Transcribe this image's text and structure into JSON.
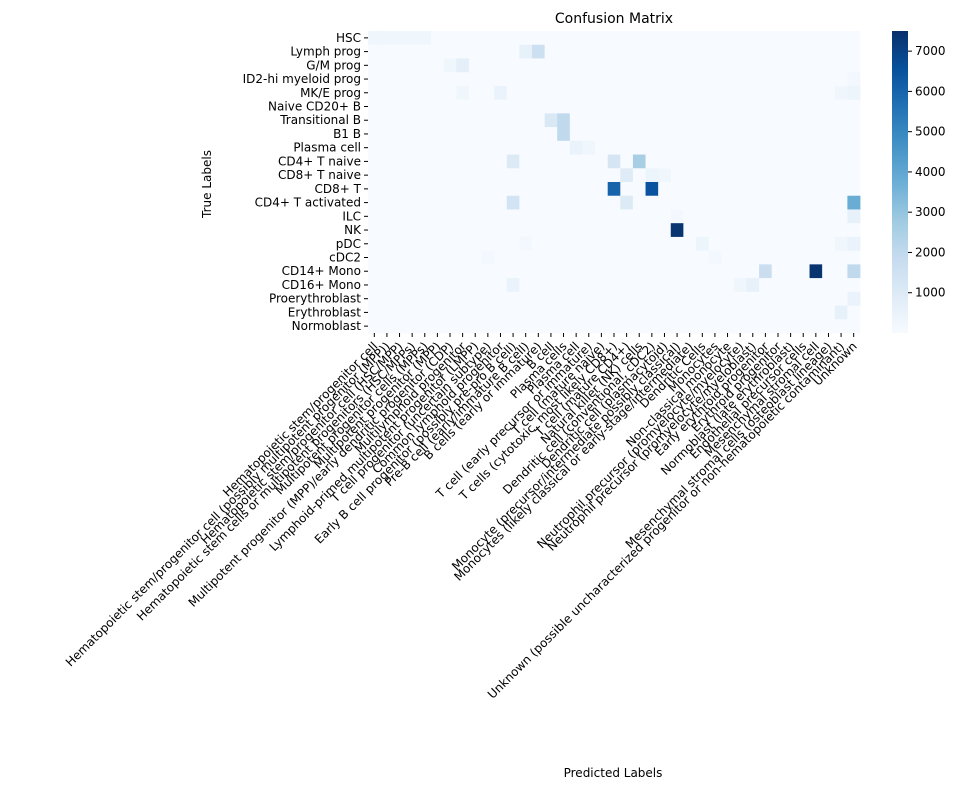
{
  "chart_data": {
    "type": "heatmap",
    "title": "Confusion Matrix",
    "xlabel": "Predicted Labels",
    "ylabel": "True Labels",
    "colormap": "Blues",
    "colorbar": {
      "min": 0,
      "max": 7500,
      "ticks": [
        1000,
        2000,
        3000,
        4000,
        5000,
        6000,
        7000
      ]
    },
    "row_labels": [
      "HSC",
      "Lymph prog",
      "G/M prog",
      "ID2-hi myeloid prog",
      "MK/E prog",
      "Naive CD20+ B",
      "Transitional B",
      "B1 B",
      "Plasma cell",
      "CD4+ T naive",
      "CD8+ T naive",
      "CD8+ T",
      "CD4+ T activated",
      "ILC",
      "NK",
      "pDC",
      "cDC2",
      "CD14+ Mono",
      "CD16+ Mono",
      "Proerythroblast",
      "Erythroblast",
      "Normoblast"
    ],
    "col_labels": [
      "Hematopoietic stem/progenitor cell",
      "Hematopoietic stem/progenitor cell (possibly multipotent progenitor (MPP))",
      "Hematopoietic stem/progenitor cell (HSC/MPP)",
      "Hematopoietic stem cells or multipotent progenitors (HSC/MPPs)",
      "Multipotent progenitor cells (MPPs)",
      "Multipotent progenitor (MPP)",
      "Multipotent progenitor (MPP)/early dendritic progenitor (CDP)",
      "Multilymphoid progenitor",
      "Lymphoid-primed multipotent progenitor (LMPP)",
      "T cell progenitor (uncertain subtype)",
      "Common lymphoid progenitor",
      "Early B cell progenitor (possibly pre-pro B cell)",
      "Pre-B cell (early/immature B cell)",
      "B cells (early or immature)",
      "B cell",
      "Plasma cells",
      "Plasma cell",
      "T cell (early precursor or immature)",
      "T cell (mature naive)",
      "T cells (cytotoxic, most likely CD8+)",
      "T cell (mature CD4+)",
      "Natural killer (NK) cells",
      "Dendritic cell (conventional, cDC2)",
      "Dendritic cell (plasmacytoid)",
      "Monocyte (precursor/intermediate possibly classical)",
      "Monocytes (likely classical or early-stage/intermediate)",
      "Dendritic Cells",
      "Monocytes",
      "Non-classical monocyte",
      "Neutrophil precursor (promyelocyte/myelocyte)",
      "Neutrophil precursor (promyelocyte/myeloblast)",
      "Early erythroid progenitor",
      "Erythroid progenitor",
      "Normoblast (late erythroblast)",
      "Endothelial precursor cells",
      "Mesenchymal stromal cell",
      "Mesenchymal stromal cells (osteoblast lineage)",
      "Unknown (possible uncharacterized progenitor or non-hematopoietic contaminant)",
      "Unknown"
    ],
    "matrix": [
      [
        300,
        300,
        300,
        300,
        300,
        0,
        0,
        0,
        0,
        0,
        0,
        0,
        0,
        0,
        0,
        0,
        0,
        0,
        0,
        0,
        0,
        0,
        0,
        0,
        0,
        0,
        0,
        0,
        0,
        0,
        0,
        0,
        0,
        0,
        0,
        0,
        0,
        0,
        0
      ],
      [
        0,
        0,
        0,
        0,
        0,
        0,
        0,
        0,
        0,
        0,
        0,
        0,
        600,
        1600,
        0,
        0,
        0,
        0,
        0,
        0,
        0,
        0,
        0,
        0,
        0,
        0,
        0,
        0,
        0,
        0,
        0,
        0,
        0,
        0,
        0,
        0,
        0,
        0,
        0
      ],
      [
        0,
        0,
        0,
        0,
        0,
        0,
        300,
        700,
        0,
        0,
        0,
        0,
        0,
        0,
        0,
        0,
        0,
        0,
        0,
        0,
        0,
        0,
        0,
        0,
        0,
        0,
        0,
        0,
        0,
        0,
        0,
        0,
        0,
        0,
        0,
        0,
        0,
        0,
        0
      ],
      [
        0,
        0,
        0,
        0,
        0,
        0,
        0,
        0,
        0,
        0,
        0,
        0,
        0,
        0,
        0,
        0,
        0,
        0,
        0,
        0,
        0,
        0,
        0,
        0,
        0,
        0,
        0,
        0,
        0,
        0,
        0,
        0,
        0,
        0,
        0,
        0,
        0,
        0,
        200
      ],
      [
        0,
        0,
        0,
        0,
        0,
        0,
        0,
        300,
        0,
        0,
        500,
        0,
        0,
        0,
        0,
        0,
        0,
        0,
        0,
        0,
        0,
        0,
        0,
        0,
        0,
        0,
        0,
        0,
        0,
        0,
        0,
        0,
        0,
        0,
        0,
        0,
        0,
        300,
        400
      ],
      [
        0,
        0,
        0,
        0,
        0,
        0,
        0,
        0,
        0,
        0,
        0,
        0,
        0,
        0,
        0,
        0,
        0,
        0,
        0,
        0,
        0,
        0,
        0,
        0,
        0,
        0,
        0,
        0,
        0,
        0,
        0,
        0,
        0,
        0,
        0,
        0,
        0,
        0,
        0
      ],
      [
        0,
        0,
        0,
        0,
        0,
        0,
        0,
        0,
        0,
        0,
        0,
        0,
        0,
        0,
        1100,
        2000,
        0,
        0,
        0,
        0,
        0,
        0,
        0,
        0,
        0,
        0,
        0,
        0,
        0,
        0,
        0,
        0,
        0,
        0,
        0,
        0,
        0,
        0,
        0
      ],
      [
        0,
        0,
        0,
        0,
        0,
        0,
        0,
        0,
        0,
        0,
        0,
        0,
        0,
        0,
        0,
        2000,
        0,
        0,
        0,
        0,
        0,
        0,
        0,
        0,
        0,
        0,
        0,
        0,
        0,
        0,
        0,
        0,
        0,
        0,
        0,
        0,
        0,
        0,
        0
      ],
      [
        0,
        0,
        0,
        0,
        0,
        0,
        0,
        0,
        0,
        0,
        0,
        0,
        0,
        0,
        0,
        0,
        500,
        300,
        0,
        0,
        0,
        0,
        0,
        0,
        0,
        0,
        0,
        0,
        0,
        0,
        0,
        0,
        0,
        0,
        0,
        0,
        0,
        0,
        0
      ],
      [
        0,
        0,
        0,
        0,
        0,
        0,
        0,
        0,
        0,
        0,
        0,
        1000,
        0,
        0,
        0,
        0,
        0,
        0,
        0,
        1300,
        0,
        2600,
        0,
        0,
        0,
        0,
        0,
        0,
        0,
        0,
        0,
        0,
        0,
        0,
        0,
        0,
        0,
        0,
        0
      ],
      [
        0,
        0,
        0,
        0,
        0,
        0,
        0,
        0,
        0,
        0,
        0,
        0,
        0,
        0,
        0,
        0,
        0,
        0,
        0,
        0,
        900,
        0,
        400,
        300,
        0,
        0,
        0,
        0,
        0,
        0,
        0,
        0,
        0,
        0,
        0,
        0,
        0,
        0,
        0
      ],
      [
        0,
        0,
        0,
        0,
        0,
        0,
        0,
        0,
        0,
        0,
        0,
        0,
        0,
        0,
        0,
        0,
        0,
        0,
        0,
        6000,
        0,
        0,
        6500,
        0,
        0,
        0,
        0,
        0,
        0,
        0,
        0,
        0,
        0,
        0,
        0,
        0,
        0,
        0,
        0
      ],
      [
        0,
        0,
        0,
        0,
        0,
        0,
        0,
        0,
        0,
        0,
        0,
        1400,
        0,
        0,
        0,
        0,
        0,
        0,
        0,
        0,
        1000,
        0,
        0,
        0,
        0,
        0,
        0,
        0,
        0,
        0,
        0,
        0,
        0,
        0,
        0,
        0,
        0,
        0,
        3800
      ],
      [
        0,
        0,
        0,
        0,
        0,
        0,
        0,
        0,
        0,
        0,
        0,
        0,
        0,
        0,
        0,
        0,
        0,
        0,
        0,
        0,
        0,
        0,
        0,
        0,
        200,
        0,
        0,
        0,
        0,
        0,
        0,
        0,
        0,
        0,
        0,
        0,
        0,
        0,
        600
      ],
      [
        0,
        0,
        0,
        0,
        0,
        0,
        0,
        0,
        0,
        0,
        0,
        0,
        0,
        0,
        0,
        0,
        0,
        0,
        0,
        0,
        0,
        0,
        0,
        0,
        7400,
        0,
        0,
        0,
        0,
        0,
        0,
        0,
        0,
        0,
        0,
        0,
        0,
        0,
        0
      ],
      [
        0,
        0,
        0,
        0,
        0,
        0,
        0,
        0,
        0,
        0,
        0,
        0,
        200,
        0,
        0,
        0,
        0,
        0,
        0,
        0,
        0,
        0,
        0,
        0,
        0,
        0,
        400,
        0,
        0,
        0,
        0,
        0,
        0,
        0,
        0,
        0,
        0,
        300,
        500
      ],
      [
        0,
        0,
        0,
        0,
        0,
        0,
        0,
        0,
        0,
        200,
        0,
        0,
        0,
        0,
        0,
        0,
        0,
        0,
        0,
        0,
        0,
        0,
        0,
        0,
        0,
        0,
        0,
        200,
        0,
        0,
        0,
        0,
        0,
        0,
        0,
        0,
        0,
        0,
        0
      ],
      [
        0,
        0,
        0,
        0,
        0,
        0,
        0,
        0,
        0,
        0,
        0,
        0,
        0,
        0,
        0,
        0,
        0,
        0,
        0,
        0,
        0,
        0,
        0,
        0,
        0,
        0,
        0,
        0,
        0,
        0,
        0,
        1700,
        0,
        0,
        0,
        7400,
        0,
        0,
        2000
      ],
      [
        0,
        0,
        0,
        0,
        0,
        0,
        0,
        0,
        0,
        0,
        0,
        500,
        0,
        0,
        0,
        0,
        0,
        0,
        0,
        0,
        0,
        0,
        0,
        0,
        0,
        0,
        0,
        0,
        0,
        300,
        600,
        0,
        0,
        0,
        0,
        0,
        0,
        0,
        0
      ],
      [
        0,
        0,
        0,
        0,
        0,
        0,
        0,
        0,
        0,
        0,
        0,
        0,
        0,
        0,
        0,
        0,
        0,
        0,
        0,
        0,
        0,
        0,
        0,
        0,
        0,
        0,
        0,
        0,
        0,
        0,
        0,
        0,
        0,
        0,
        0,
        0,
        0,
        0,
        500
      ],
      [
        0,
        0,
        0,
        0,
        0,
        0,
        0,
        0,
        0,
        0,
        0,
        0,
        0,
        0,
        0,
        0,
        0,
        0,
        0,
        0,
        0,
        0,
        0,
        0,
        0,
        0,
        0,
        0,
        0,
        0,
        0,
        0,
        0,
        0,
        0,
        0,
        0,
        600,
        0
      ],
      [
        0,
        0,
        0,
        0,
        0,
        0,
        0,
        0,
        0,
        0,
        0,
        0,
        0,
        0,
        0,
        0,
        0,
        0,
        0,
        0,
        0,
        0,
        0,
        0,
        0,
        0,
        0,
        0,
        0,
        0,
        0,
        0,
        0,
        0,
        0,
        0,
        0,
        0,
        0
      ]
    ]
  }
}
